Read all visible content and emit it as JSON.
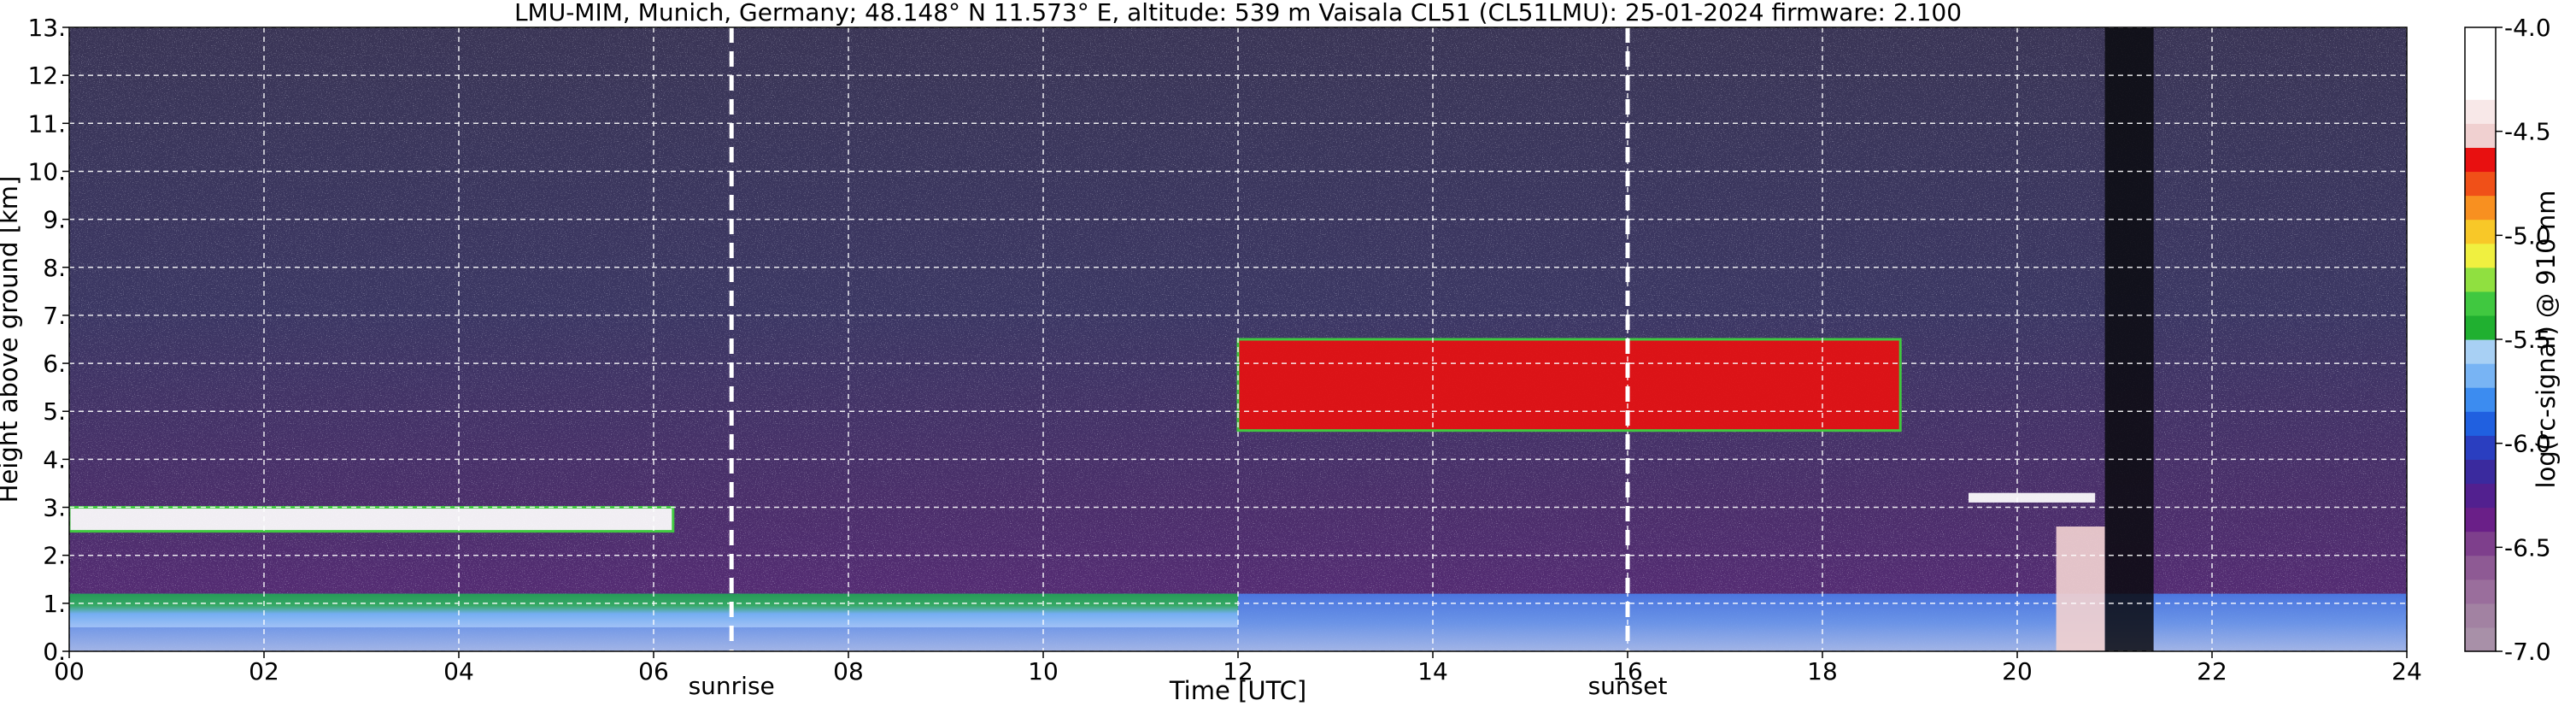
{
  "chart_data": {
    "type": "heatmap",
    "title": "LMU-MIM, Munich, Germany; 48.148° N 11.573° E, altitude: 539 m    Vaisala CL51 (CL51LMU): 25-01-2024    firmware: 2.100",
    "xlabel": "Time [UTC]",
    "ylabel": "Height above ground [km]",
    "colorbar_label": "log(rc-signal) @ 910 nm",
    "xlim": [
      0,
      24
    ],
    "ylim": [
      0,
      13
    ],
    "x_ticks": [
      {
        "v": 0,
        "label": "00"
      },
      {
        "v": 2,
        "label": "02"
      },
      {
        "v": 4,
        "label": "04"
      },
      {
        "v": 6,
        "label": "06"
      },
      {
        "v": 8,
        "label": "08"
      },
      {
        "v": 10,
        "label": "10"
      },
      {
        "v": 12,
        "label": "12"
      },
      {
        "v": 14,
        "label": "14"
      },
      {
        "v": 16,
        "label": "16"
      },
      {
        "v": 18,
        "label": "18"
      },
      {
        "v": 20,
        "label": "20"
      },
      {
        "v": 22,
        "label": "22"
      },
      {
        "v": 24,
        "label": "24"
      }
    ],
    "y_ticks": [
      {
        "v": 0,
        "label": "0."
      },
      {
        "v": 1,
        "label": "1."
      },
      {
        "v": 2,
        "label": "2."
      },
      {
        "v": 3,
        "label": "3."
      },
      {
        "v": 4,
        "label": "4."
      },
      {
        "v": 5,
        "label": "5."
      },
      {
        "v": 6,
        "label": "6."
      },
      {
        "v": 7,
        "label": "7."
      },
      {
        "v": 8,
        "label": "8."
      },
      {
        "v": 9,
        "label": "9."
      },
      {
        "v": 10,
        "label": "10."
      },
      {
        "v": 11,
        "label": "11."
      },
      {
        "v": 12,
        "label": "12."
      },
      {
        "v": 13,
        "label": "13."
      }
    ],
    "colorbar": {
      "range": [
        -7.0,
        -4.0
      ],
      "ticks": [
        {
          "v": -4.0,
          "label": "-4.0"
        },
        {
          "v": -4.5,
          "label": "-4.5"
        },
        {
          "v": -5.0,
          "label": "-5.0"
        },
        {
          "v": -5.5,
          "label": "-5.5"
        },
        {
          "v": -6.0,
          "label": "-6.0"
        },
        {
          "v": -6.5,
          "label": "-6.5"
        },
        {
          "v": -7.0,
          "label": "-7.0"
        }
      ],
      "colors": [
        "#a890a8",
        "#a282a2",
        "#9a6e9c",
        "#8e5a94",
        "#7e3f8c",
        "#6a1f88",
        "#52208f",
        "#3a2a9e",
        "#2a3ec0",
        "#2060e0",
        "#3c8cf0",
        "#78b4f4",
        "#a8d0f4",
        "#20b030",
        "#40c840",
        "#90e040",
        "#f0f040",
        "#f8c828",
        "#f89020",
        "#f05018",
        "#e81010",
        "#f0d0d0",
        "#f8e8e8",
        "#ffffff",
        "#ffffff",
        "#ffffff"
      ]
    },
    "markers": [
      {
        "x": 6.8,
        "label": "sunrise"
      },
      {
        "x": 16.0,
        "label": "sunset"
      }
    ],
    "features": [
      {
        "kind": "surface_layer",
        "x_range": [
          0,
          24
        ],
        "top_km": 1.2,
        "value": -5.6
      },
      {
        "kind": "low_cloud",
        "x_range": [
          0,
          6.2
        ],
        "base_km": 2.5,
        "top_km": 3.0,
        "value": -4.2
      },
      {
        "kind": "mid_cloud",
        "x_range": [
          12,
          18.8
        ],
        "base_km": 4.6,
        "top_km": 6.5,
        "value": -4.6
      },
      {
        "kind": "cloud_layer",
        "x_range": [
          19.5,
          20.8
        ],
        "base_km": 3.1,
        "top_km": 3.3,
        "value": -4.3
      },
      {
        "kind": "precip_streak",
        "x_range": [
          20.4,
          20.9
        ],
        "base_km": 0.0,
        "top_km": 2.6,
        "value": -4.5
      },
      {
        "kind": "signal_gap",
        "x_range": [
          20.9,
          21.4
        ],
        "base_km": 0.0,
        "top_km": 13.0,
        "value": -7.0
      }
    ],
    "background_value": -6.4,
    "grid": true
  }
}
